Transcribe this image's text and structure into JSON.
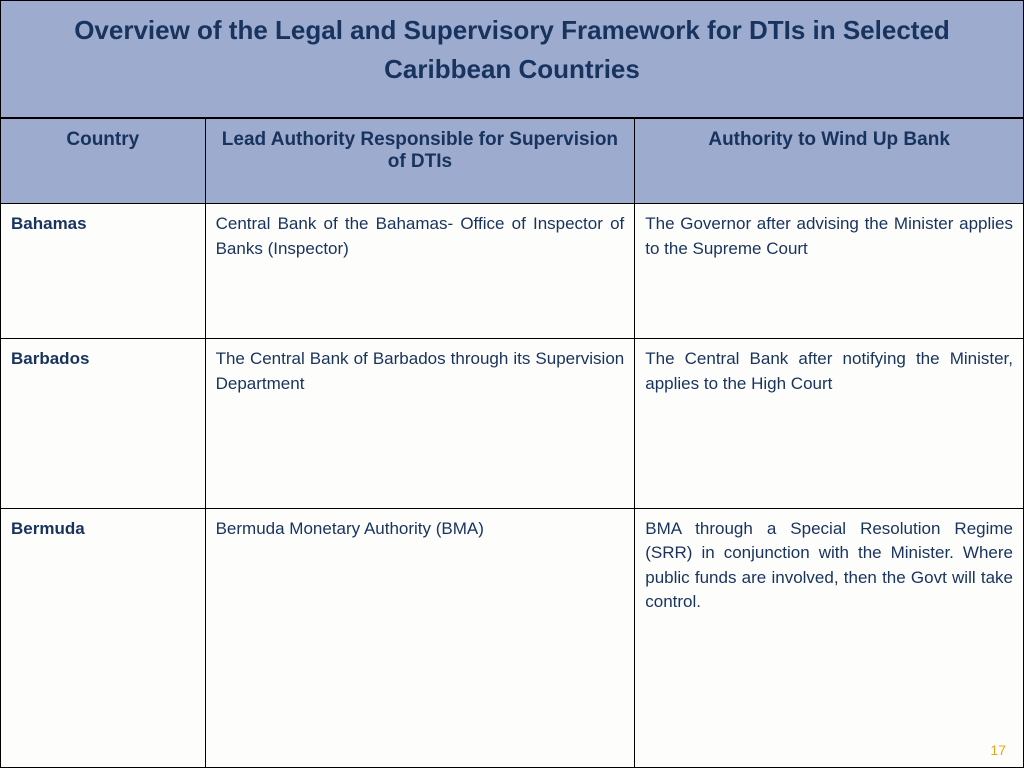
{
  "title": "Overview of the Legal and Supervisory Framework for DTIs  in Selected  Caribbean Countries",
  "columns": {
    "country": "Country",
    "lead": "Lead Authority Responsible for Supervision of DTIs",
    "windup": "Authority to Wind Up Bank"
  },
  "rows": [
    {
      "country": "Bahamas",
      "lead": "Central Bank of the Bahamas- Office of Inspector of Banks  (Inspector)",
      "windup": "The Governor  after advising the Minister  applies to the Supreme Court"
    },
    {
      "country": "Barbados",
      "lead": "The Central Bank of Barbados through its Supervision Department",
      "windup": "The Central Bank after notifying the Minister, applies to the High Court"
    },
    {
      "country": "Bermuda",
      "lead": "Bermuda Monetary Authority (BMA)",
      "windup": "BMA through a Special Resolution Regime (SRR) in conjunction with the Minister. Where public funds are involved, then the Govt will take control."
    }
  ],
  "page_number": "17",
  "style": {
    "header_bg": "#9cabce",
    "text_color": "#18335e",
    "page_num_color": "#e6a817",
    "title_fontsize": 26,
    "header_fontsize": 19,
    "body_fontsize": 17,
    "column_widths_pct": [
      20,
      42,
      38
    ]
  }
}
